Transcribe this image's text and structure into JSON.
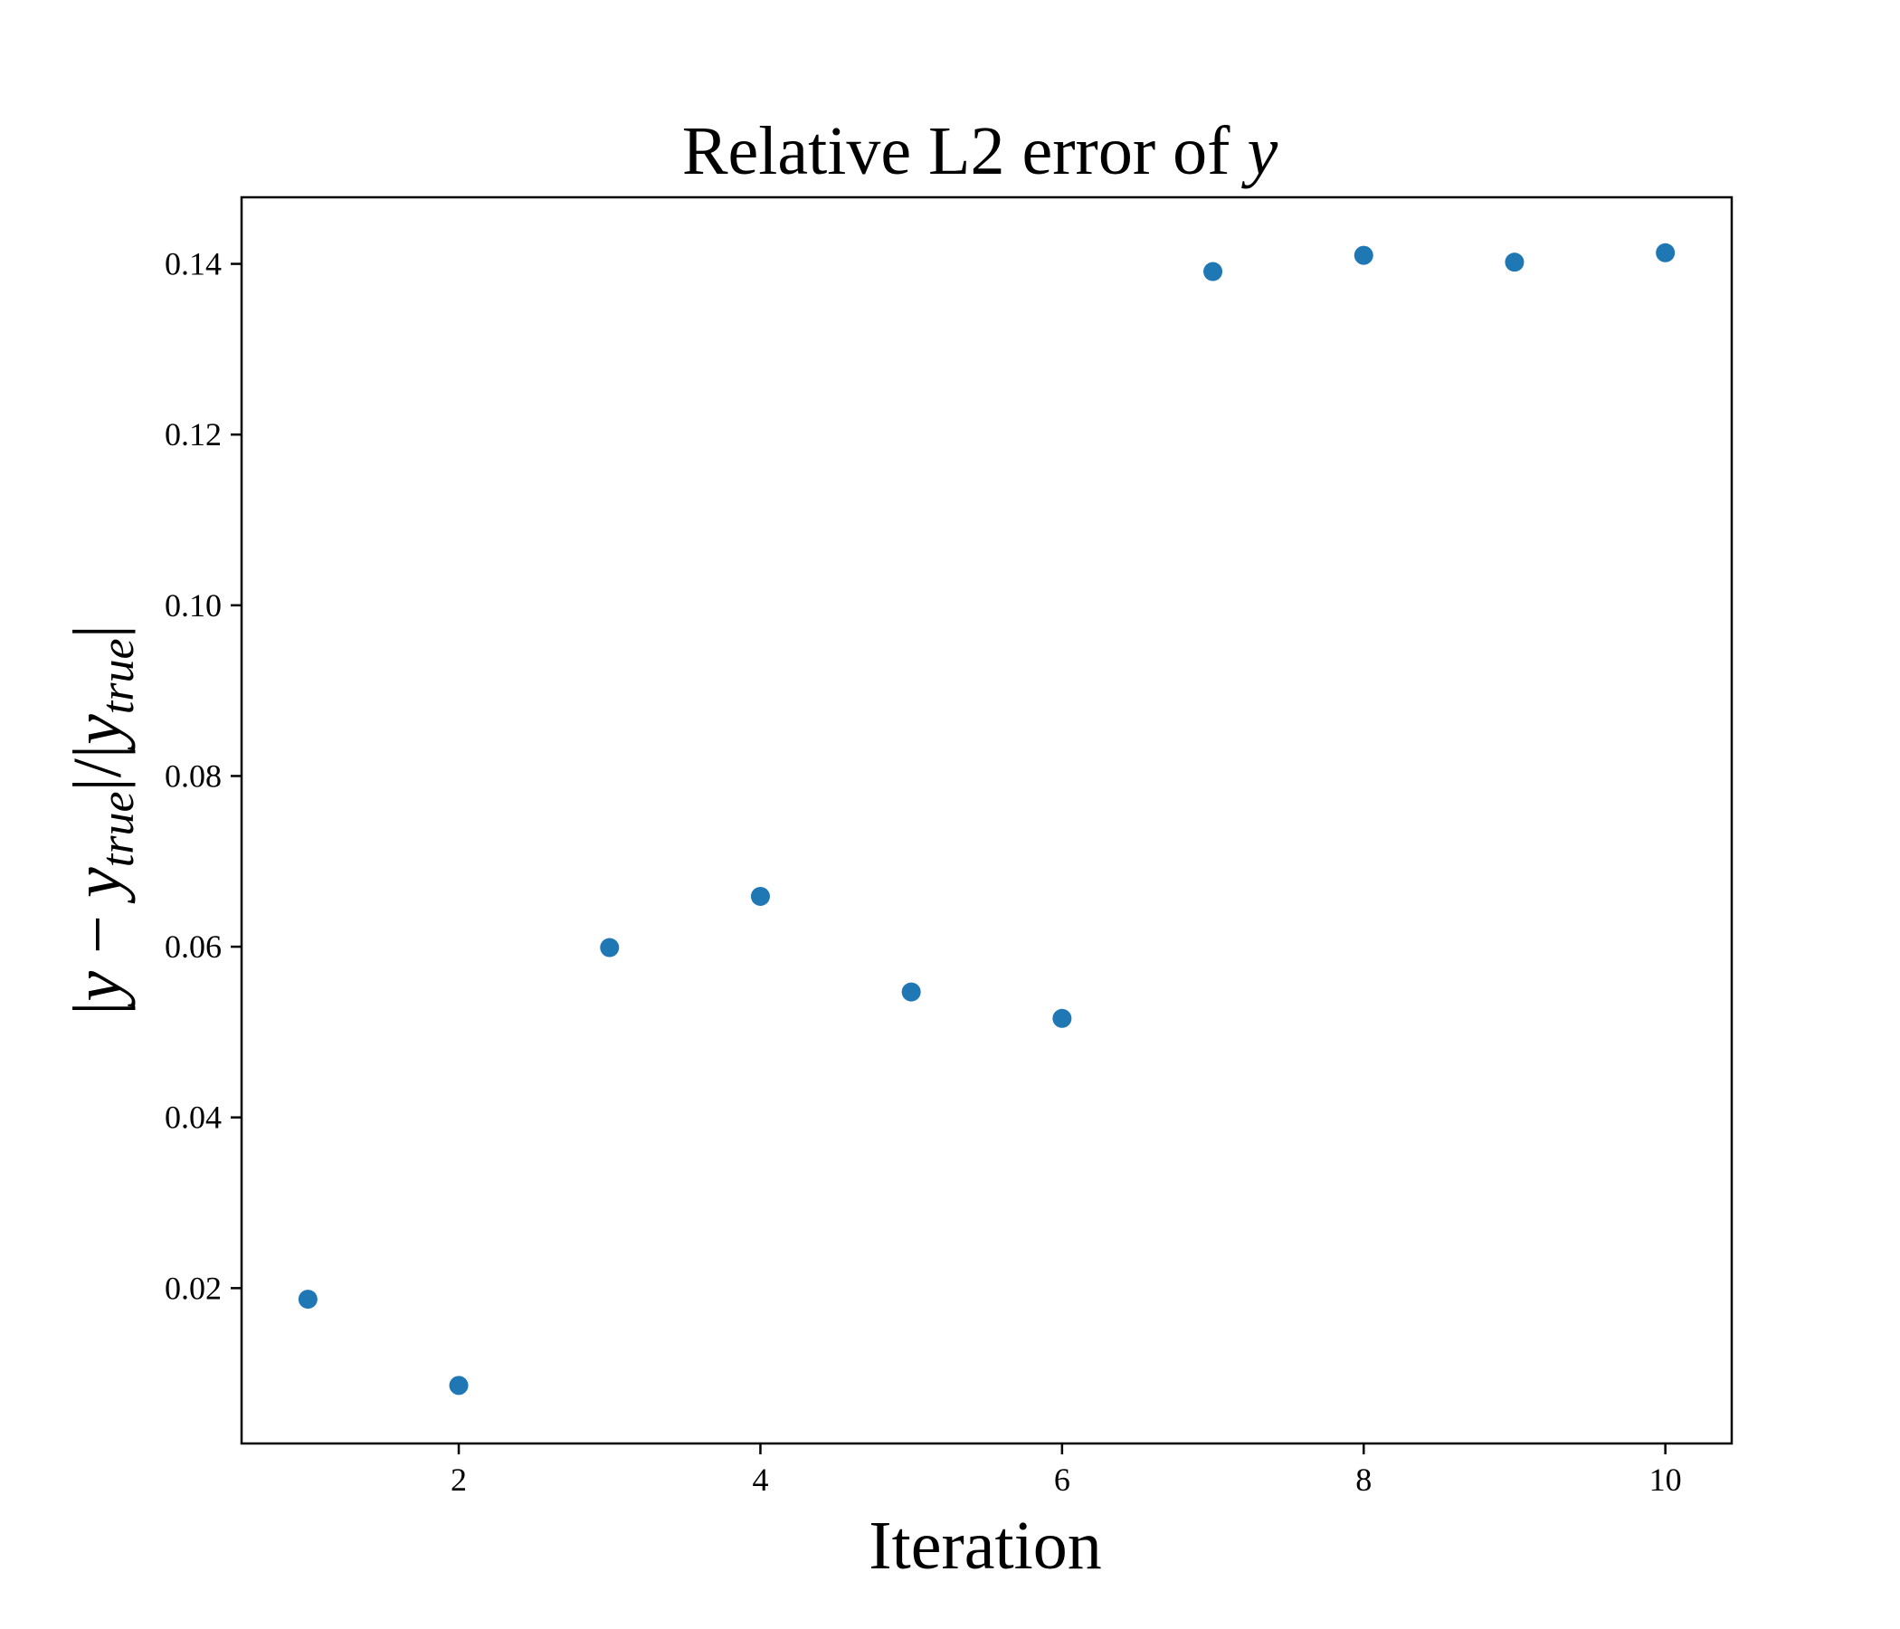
{
  "chart_data": {
    "type": "scatter",
    "title": {
      "prefix": "Relative L2 error of ",
      "var": "y"
    },
    "xlabel": "Iteration",
    "ylabel": {
      "open": "|",
      "y1": "y",
      "minus": " − ",
      "y2": "y",
      "sub1": "true",
      "mid": "|/|",
      "y3": "y",
      "sub2": "true",
      "close": "|"
    },
    "xlim": [
      0.56,
      10.44
    ],
    "ylim": [
      0.0018,
      0.1478
    ],
    "xticks": [
      2,
      4,
      6,
      8,
      10
    ],
    "yticks": [
      0.02,
      0.04,
      0.06,
      0.08,
      0.1,
      0.12,
      0.14
    ],
    "ytick_labels": [
      "0.02",
      "0.04",
      "0.06",
      "0.08",
      "0.10",
      "0.12",
      "0.14"
    ],
    "xtick_labels": [
      "2",
      "4",
      "6",
      "8",
      "10"
    ],
    "grid": false,
    "legend": "none",
    "color": "#1f77b4",
    "series": [
      {
        "x": [
          1,
          2,
          3,
          4,
          5,
          6,
          7,
          8,
          9,
          10
        ],
        "y": [
          0.0187,
          0.0086,
          0.0599,
          0.0659,
          0.0547,
          0.0516,
          0.1391,
          0.141,
          0.1402,
          0.1413
        ]
      }
    ]
  }
}
